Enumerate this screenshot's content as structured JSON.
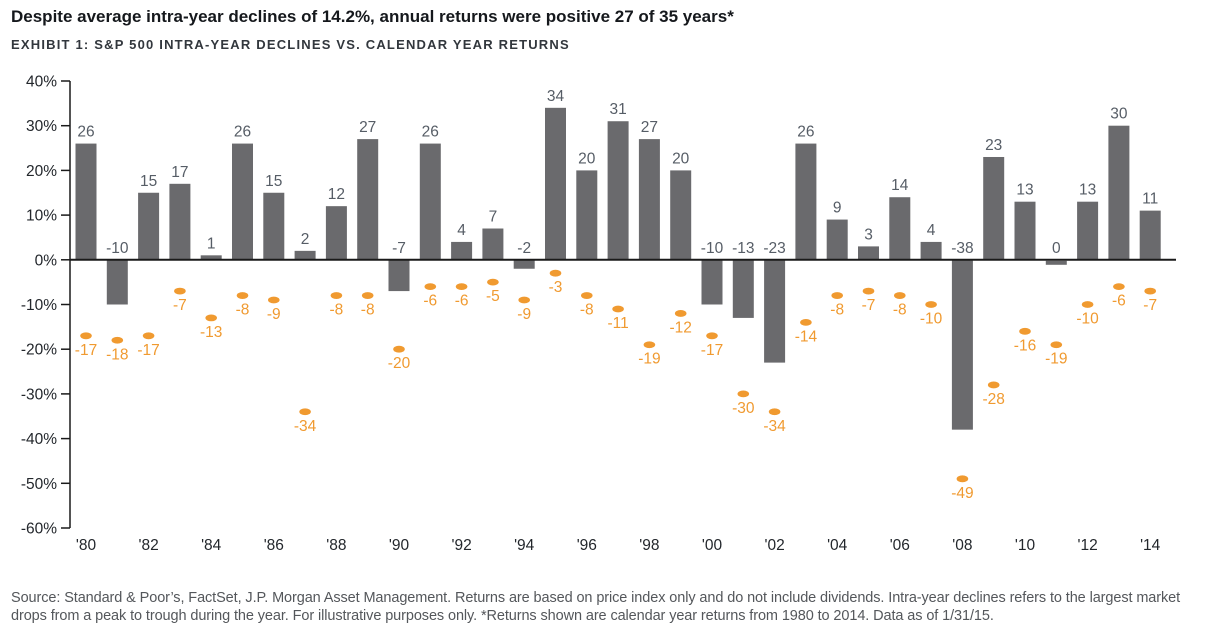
{
  "title": "Despite average intra-year declines of 14.2%, annual returns were positive 27 of 35 years*",
  "exhibit_label": "EXHIBIT 1: S&P 500 INTRA-YEAR DECLINES VS. CALENDAR YEAR RETURNS",
  "source_note": "Source: Standard & Poor’s, FactSet, J.P. Morgan Asset Management. Returns are based on price index only and do not include dividends. Intra-year declines refers to the largest market drops from a peak to trough during the year. For illustrative purposes only. *Returns shown are calendar year returns from 1980 to 2014. Data as of 1/31/15.",
  "colors": {
    "bar": "#6A6A6D",
    "bar_label": "#565D66",
    "decline": "#F09A30",
    "axis": "#1A1A1A",
    "tick_label": "#23272C"
  },
  "chart_data": {
    "type": "bar",
    "title": "S&P 500 intra-year declines vs. calendar year returns",
    "categories": [
      1980,
      1981,
      1982,
      1983,
      1984,
      1985,
      1986,
      1987,
      1988,
      1989,
      1990,
      1991,
      1992,
      1993,
      1994,
      1995,
      1996,
      1997,
      1998,
      1999,
      2000,
      2001,
      2002,
      2003,
      2004,
      2005,
      2006,
      2007,
      2008,
      2009,
      2010,
      2011,
      2012,
      2013,
      2014
    ],
    "series": [
      {
        "name": "Calendar year return (%)",
        "type": "bar",
        "values": [
          26,
          -10,
          15,
          17,
          1,
          26,
          15,
          2,
          12,
          27,
          -7,
          26,
          4,
          7,
          -2,
          34,
          20,
          31,
          27,
          20,
          -10,
          -13,
          -23,
          26,
          9,
          3,
          14,
          4,
          -38,
          23,
          13,
          0,
          13,
          30,
          11
        ]
      },
      {
        "name": "Intra-year largest decline (%)",
        "type": "scatter",
        "values": [
          -17,
          -18,
          -17,
          -7,
          -13,
          -8,
          -9,
          -34,
          -8,
          -8,
          -20,
          -6,
          -6,
          -5,
          -9,
          -3,
          -8,
          -11,
          -19,
          -12,
          -17,
          -30,
          -34,
          -14,
          -8,
          -7,
          -8,
          -10,
          -49,
          -28,
          -16,
          -19,
          -10,
          -6,
          -7
        ]
      }
    ],
    "ylim": [
      -60,
      40
    ],
    "ytick_step": 10,
    "ytick_suffix": "%",
    "xtick_labels": [
      "'80",
      "'82",
      "'84",
      "'86",
      "'88",
      "'90",
      "'92",
      "'94",
      "'96",
      "'98",
      "'00",
      "'02",
      "'04",
      "'06",
      "'08",
      "'10",
      "'12",
      "'14"
    ],
    "grid": false,
    "legend": "none",
    "xlabel": "",
    "ylabel": ""
  }
}
